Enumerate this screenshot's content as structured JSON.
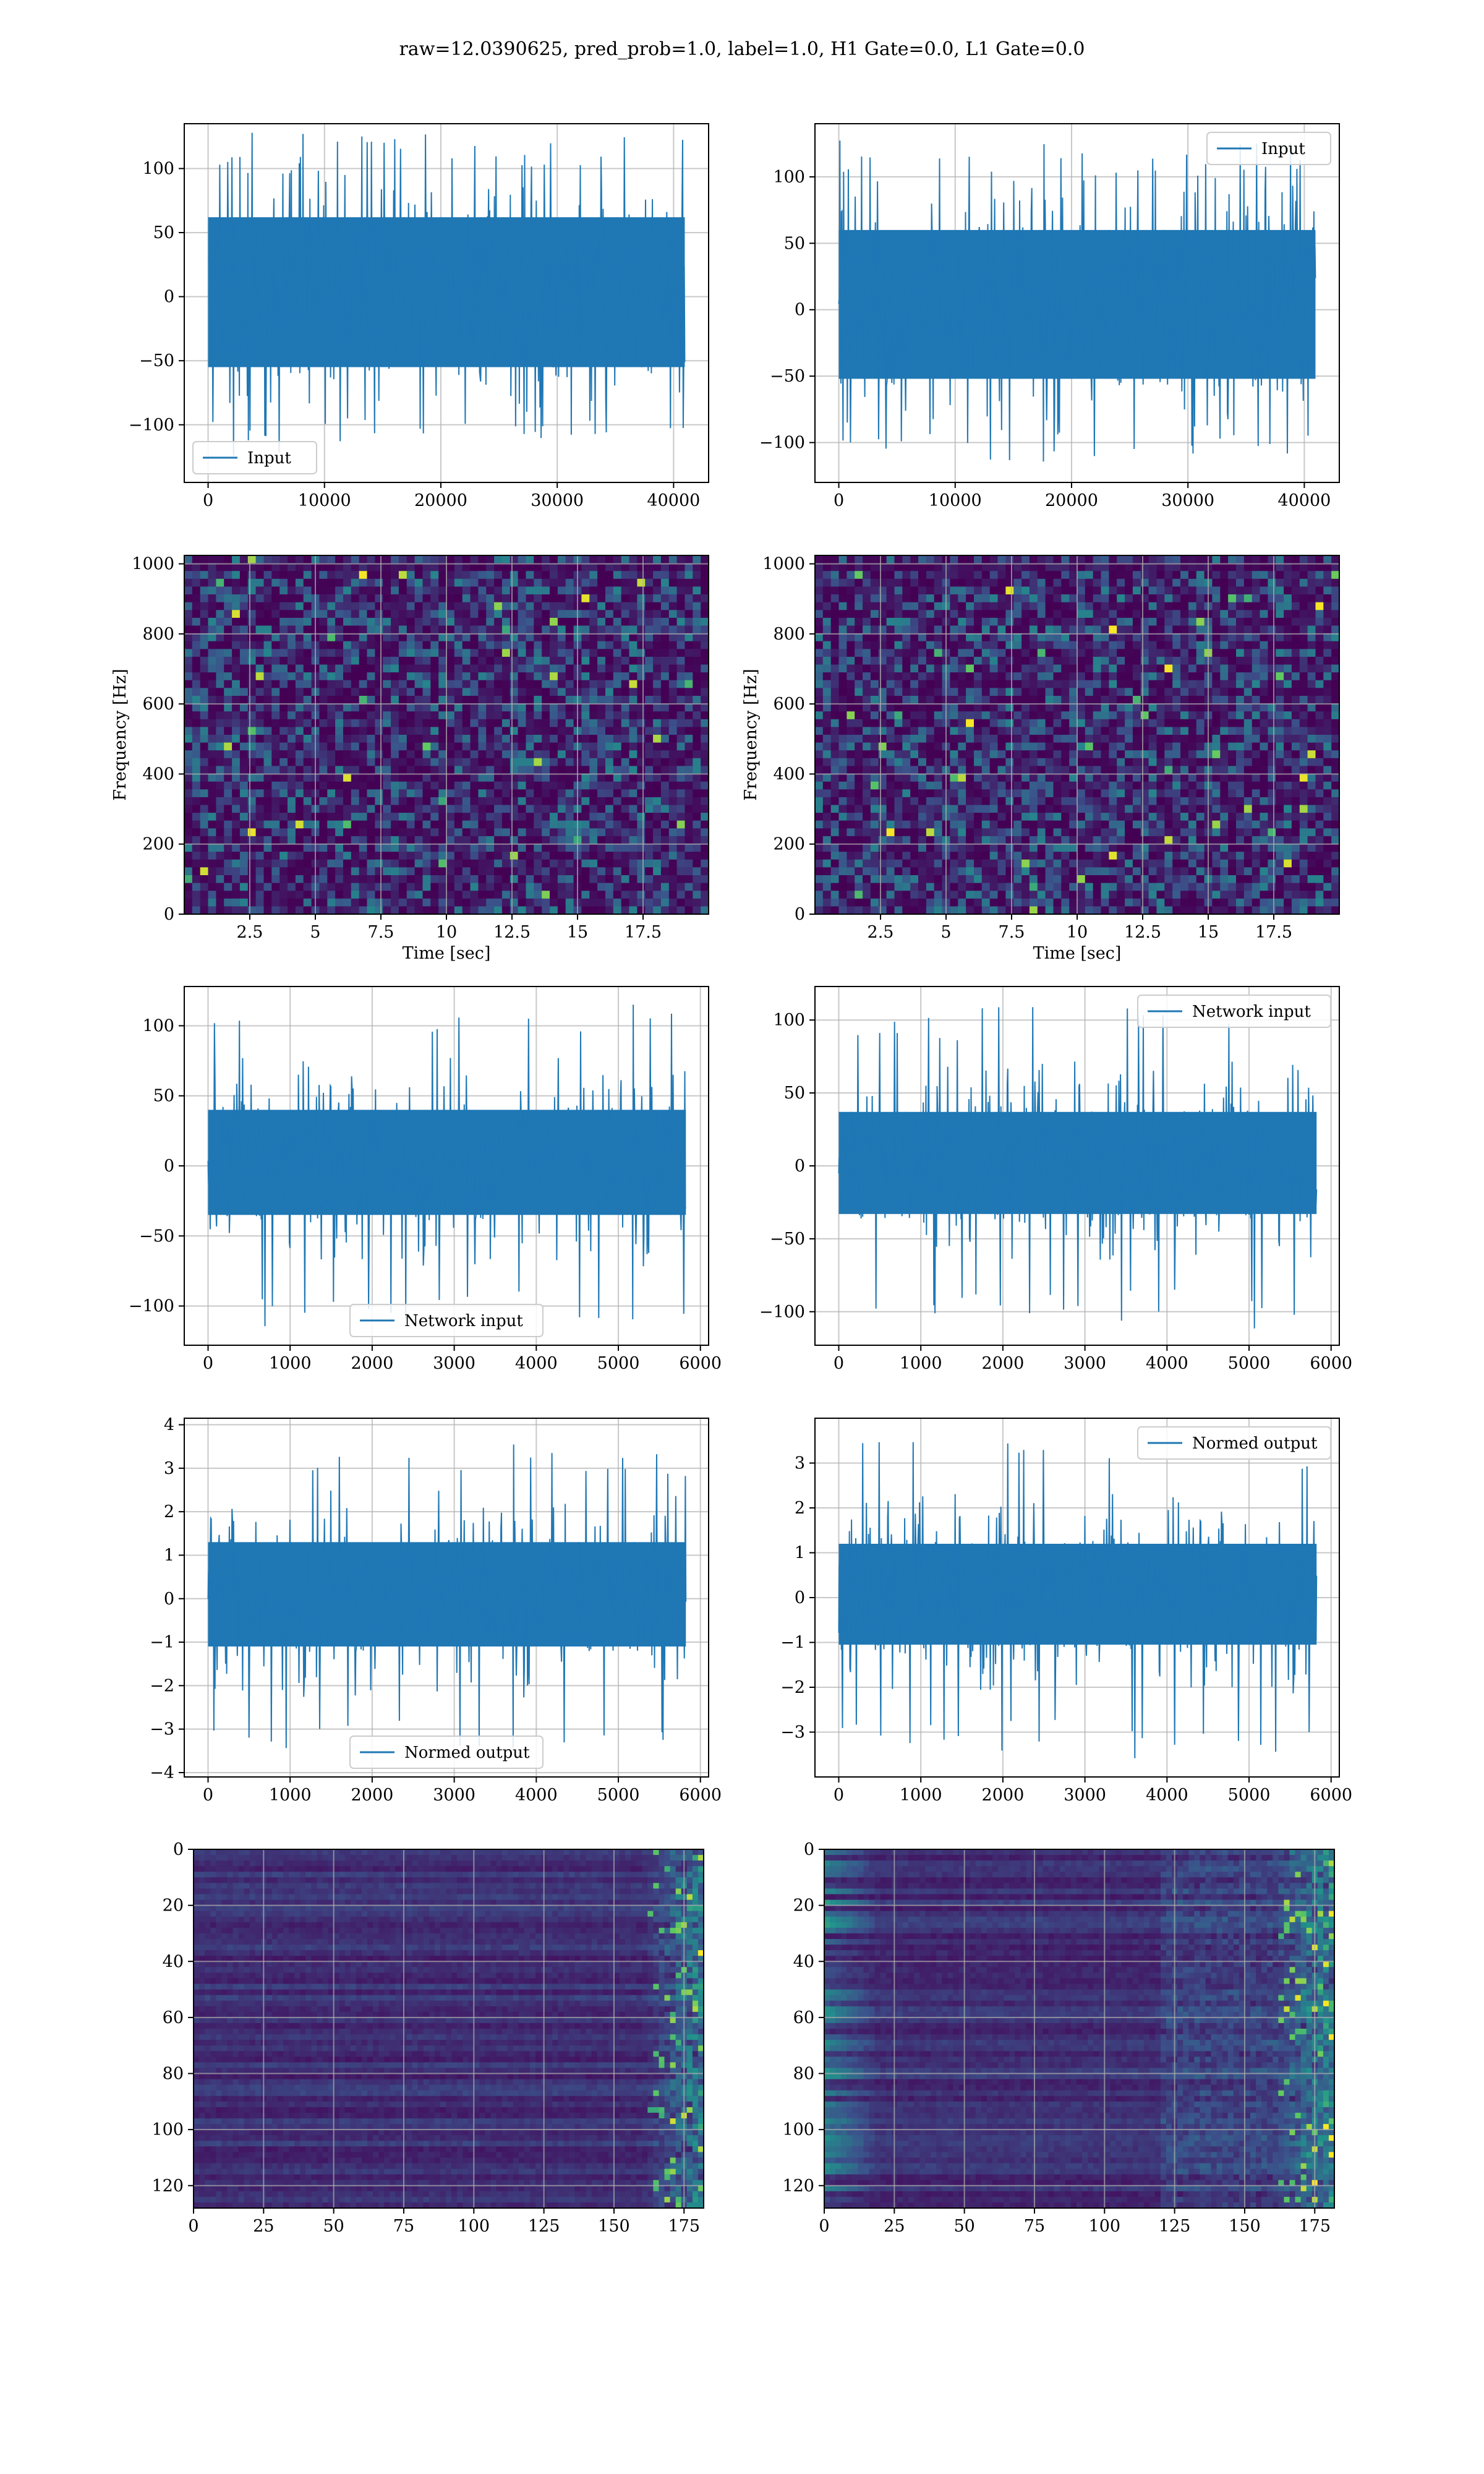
{
  "figure": {
    "title": "raw=12.0390625, pred_prob=1.0, label=1.0, H1 Gate=0.0, L1 Gate=0.0"
  },
  "colors": {
    "line": "#1f77b4",
    "grid": "#b0b0b0",
    "viridis_dark": "#440154",
    "viridis_mid": "#3b528b",
    "viridis_green": "#21918c",
    "viridis_bright": "#fde725"
  },
  "chart_data": [
    {
      "id": "input-h1",
      "type": "line",
      "legend": "Input",
      "legend_loc": "lower left",
      "xlim": [
        -2048,
        43008
      ],
      "ylim": [
        -145,
        135
      ],
      "xticks": [
        0,
        10000,
        20000,
        30000,
        40000
      ],
      "yticks": [
        -100,
        -50,
        0,
        50,
        100
      ],
      "x_range": [
        0,
        40959
      ],
      "band": [
        -55,
        62
      ],
      "peaks": [
        -125,
        128
      ]
    },
    {
      "id": "input-l1",
      "type": "line",
      "legend": "Input",
      "legend_loc": "upper right",
      "xlim": [
        -2048,
        43008
      ],
      "ylim": [
        -130,
        140
      ],
      "xticks": [
        0,
        10000,
        20000,
        30000,
        40000
      ],
      "yticks": [
        -100,
        -50,
        0,
        50,
        100
      ],
      "x_range": [
        0,
        40959
      ],
      "band": [
        -52,
        60
      ],
      "peaks": [
        -120,
        130
      ]
    },
    {
      "id": "spectrogram-h1",
      "type": "heatmap",
      "xlabel": "Time [sec]",
      "ylabel": "Frequency [Hz]",
      "xlim": [
        0,
        20
      ],
      "ylim": [
        0,
        1024
      ],
      "xticks": [
        2.5,
        5.0,
        7.5,
        10.0,
        12.5,
        15.0,
        17.5
      ],
      "yticks": [
        0,
        200,
        400,
        600,
        800,
        1000
      ]
    },
    {
      "id": "spectrogram-l1",
      "type": "heatmap",
      "xlabel": "Time [sec]",
      "ylabel": "Frequency [Hz]",
      "xlim": [
        0,
        20
      ],
      "ylim": [
        0,
        1024
      ],
      "xticks": [
        2.5,
        5.0,
        7.5,
        10.0,
        12.5,
        15.0,
        17.5
      ],
      "yticks": [
        0,
        200,
        400,
        600,
        800,
        1000
      ]
    },
    {
      "id": "network-input-h1",
      "type": "line",
      "legend": "Network input",
      "legend_loc": "lower center",
      "xlim": [
        -290,
        6100
      ],
      "ylim": [
        -128,
        128
      ],
      "xticks": [
        0,
        1000,
        2000,
        3000,
        4000,
        5000,
        6000
      ],
      "yticks": [
        -100,
        -50,
        0,
        50,
        100
      ],
      "x_range": [
        0,
        5823
      ],
      "band": [
        -35,
        40
      ],
      "peaks": [
        -115,
        120
      ]
    },
    {
      "id": "network-input-l1",
      "type": "line",
      "legend": "Network input",
      "legend_loc": "upper right",
      "xlim": [
        -290,
        6100
      ],
      "ylim": [
        -123,
        123
      ],
      "xticks": [
        0,
        1000,
        2000,
        3000,
        4000,
        5000,
        6000
      ],
      "yticks": [
        -100,
        -50,
        0,
        50,
        100
      ],
      "x_range": [
        0,
        5823
      ],
      "band": [
        -33,
        37
      ],
      "peaks": [
        -112,
        113
      ]
    },
    {
      "id": "normed-output-h1",
      "type": "line",
      "legend": "Normed output",
      "legend_loc": "lower center",
      "xlim": [
        -290,
        6100
      ],
      "ylim": [
        -4.1,
        4.15
      ],
      "xticks": [
        0,
        1000,
        2000,
        3000,
        4000,
        5000,
        6000
      ],
      "yticks": [
        -4,
        -3,
        -2,
        -1,
        0,
        1,
        2,
        3,
        4
      ],
      "x_range": [
        0,
        5823
      ],
      "band": [
        -1.1,
        1.3
      ],
      "peaks": [
        -3.6,
        3.7
      ]
    },
    {
      "id": "normed-output-l1",
      "type": "line",
      "legend": "Normed output",
      "legend_loc": "upper right",
      "xlim": [
        -290,
        6100
      ],
      "ylim": [
        -4.0,
        4.0
      ],
      "xticks": [
        0,
        1000,
        2000,
        3000,
        4000,
        5000,
        6000
      ],
      "yticks": [
        -3,
        -2,
        -1,
        0,
        1,
        2,
        3
      ],
      "x_range": [
        0,
        5823
      ],
      "band": [
        -1.05,
        1.2
      ],
      "peaks": [
        -3.6,
        3.6
      ]
    },
    {
      "id": "feature-map-h1",
      "type": "heatmap",
      "xlim": [
        0,
        182
      ],
      "ylim": [
        128,
        0
      ],
      "xticks": [
        0,
        25,
        50,
        75,
        100,
        125,
        150,
        175
      ],
      "yticks": [
        0,
        20,
        40,
        60,
        80,
        100,
        120
      ]
    },
    {
      "id": "feature-map-l1",
      "type": "heatmap",
      "xlim": [
        0,
        182
      ],
      "ylim": [
        128,
        0
      ],
      "xticks": [
        0,
        25,
        50,
        75,
        100,
        125,
        150,
        175
      ],
      "yticks": [
        0,
        20,
        40,
        60,
        80,
        100,
        120
      ]
    }
  ]
}
